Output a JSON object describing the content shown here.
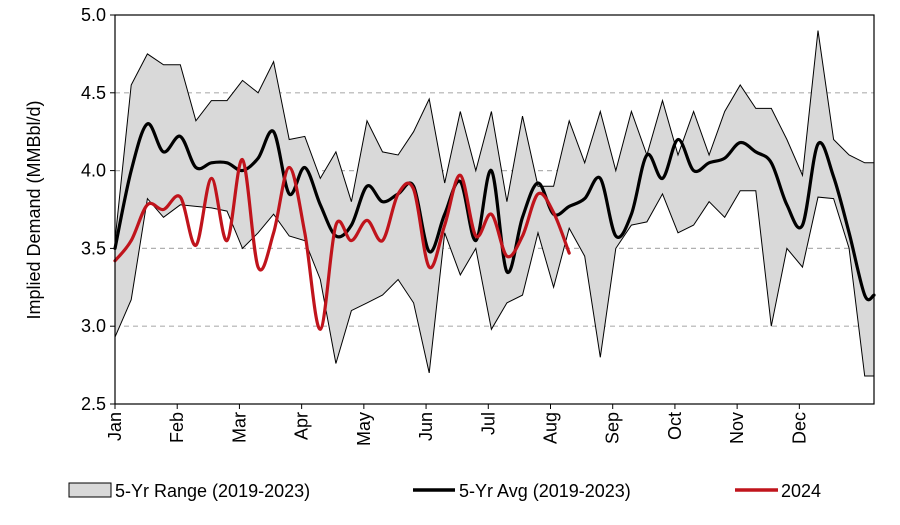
{
  "chart_data": {
    "type": "line",
    "ylabel": "Implied Demand (MMBbl/d)",
    "ylim": [
      2.5,
      5.0
    ],
    "yticks": [
      "2.5",
      "3.0",
      "3.5",
      "4.0",
      "4.5",
      "5.0"
    ],
    "xlim": [
      0,
      12.2
    ],
    "month_labels": [
      "Jan",
      "Feb",
      "Mar",
      "Apr",
      "May",
      "Jun",
      "Jul",
      "Aug",
      "Sep",
      "Oct",
      "Nov",
      "Dec"
    ],
    "grid": "horizontal dashed",
    "legend_position": "bottom",
    "range": {
      "name": "5-Yr Range (2019-2023)",
      "x": [
        0,
        0.26,
        0.52,
        0.78,
        1.05,
        1.3,
        1.55,
        1.8,
        2.05,
        2.3,
        2.55,
        2.8,
        3.05,
        3.3,
        3.55,
        3.8,
        4.05,
        4.3,
        4.55,
        4.8,
        5.05,
        5.3,
        5.55,
        5.8,
        6.05,
        6.3,
        6.55,
        6.8,
        7.05,
        7.3,
        7.55,
        7.8,
        8.05,
        8.3,
        8.55,
        8.8,
        9.05,
        9.3,
        9.55,
        9.8,
        10.05,
        10.3,
        10.55,
        10.8,
        11.05,
        11.3,
        11.55,
        11.8,
        12.05,
        12.2
      ],
      "low": [
        2.93,
        3.17,
        3.82,
        3.7,
        3.78,
        3.77,
        3.76,
        3.74,
        3.5,
        3.6,
        3.72,
        3.58,
        3.55,
        3.3,
        2.76,
        3.1,
        3.15,
        3.2,
        3.3,
        3.15,
        2.7,
        3.6,
        3.33,
        3.5,
        2.98,
        3.15,
        3.2,
        3.6,
        3.25,
        3.63,
        3.45,
        2.8,
        3.5,
        3.65,
        3.67,
        3.85,
        3.6,
        3.65,
        3.8,
        3.7,
        3.87,
        3.87,
        3.0,
        3.5,
        3.38,
        3.83,
        3.82,
        3.5,
        2.68,
        2.68
      ],
      "high": [
        3.55,
        4.55,
        4.75,
        4.68,
        4.68,
        4.32,
        4.45,
        4.45,
        4.58,
        4.5,
        4.7,
        4.2,
        4.22,
        3.95,
        4.12,
        3.8,
        4.32,
        4.12,
        4.1,
        4.25,
        4.46,
        3.92,
        4.38,
        4.0,
        4.38,
        3.8,
        4.35,
        3.9,
        3.9,
        4.32,
        4.05,
        4.38,
        4.0,
        4.38,
        4.1,
        4.45,
        4.1,
        4.38,
        4.1,
        4.38,
        4.55,
        4.4,
        4.4,
        4.2,
        3.97,
        4.9,
        4.2,
        4.1,
        4.05,
        4.05
      ]
    },
    "series": [
      {
        "name": "5-Yr Avg (2019-2023)",
        "color": "#000000",
        "x": [
          0,
          0.26,
          0.52,
          0.78,
          1.05,
          1.3,
          1.55,
          1.8,
          2.05,
          2.3,
          2.55,
          2.8,
          3.05,
          3.3,
          3.55,
          3.8,
          4.05,
          4.3,
          4.55,
          4.8,
          5.05,
          5.3,
          5.55,
          5.8,
          6.05,
          6.3,
          6.55,
          6.8,
          7.05,
          7.3,
          7.55,
          7.8,
          8.05,
          8.3,
          8.55,
          8.8,
          9.05,
          9.3,
          9.55,
          9.8,
          10.05,
          10.3,
          10.55,
          10.8,
          11.05,
          11.3,
          11.55,
          11.8,
          12.05,
          12.2
        ],
        "values": [
          3.5,
          4.0,
          4.3,
          4.12,
          4.22,
          4.02,
          4.05,
          4.05,
          4.0,
          4.08,
          4.25,
          3.85,
          4.02,
          3.78,
          3.58,
          3.65,
          3.9,
          3.8,
          3.85,
          3.9,
          3.48,
          3.72,
          3.93,
          3.55,
          4.0,
          3.35,
          3.7,
          3.92,
          3.72,
          3.77,
          3.82,
          3.95,
          3.58,
          3.72,
          4.1,
          3.95,
          4.2,
          4.0,
          4.05,
          4.08,
          4.18,
          4.12,
          4.05,
          3.78,
          3.65,
          4.17,
          3.96,
          3.6,
          3.2,
          3.2
        ]
      },
      {
        "name": "2024",
        "color": "#c0141c",
        "x": [
          0,
          0.26,
          0.52,
          0.78,
          1.05,
          1.3,
          1.55,
          1.8,
          2.05,
          2.3,
          2.55,
          2.8,
          3.05,
          3.3,
          3.55,
          3.8,
          4.05,
          4.3,
          4.55,
          4.8,
          5.05,
          5.3,
          5.55,
          5.8,
          6.05,
          6.3,
          6.55,
          6.8,
          7.05,
          7.3
        ],
        "values": [
          3.42,
          3.55,
          3.78,
          3.75,
          3.83,
          3.52,
          3.95,
          3.55,
          4.07,
          3.38,
          3.6,
          4.02,
          3.6,
          2.98,
          3.65,
          3.55,
          3.68,
          3.55,
          3.85,
          3.88,
          3.38,
          3.65,
          3.97,
          3.58,
          3.72,
          3.45,
          3.58,
          3.85,
          3.73,
          3.47
        ]
      }
    ]
  }
}
